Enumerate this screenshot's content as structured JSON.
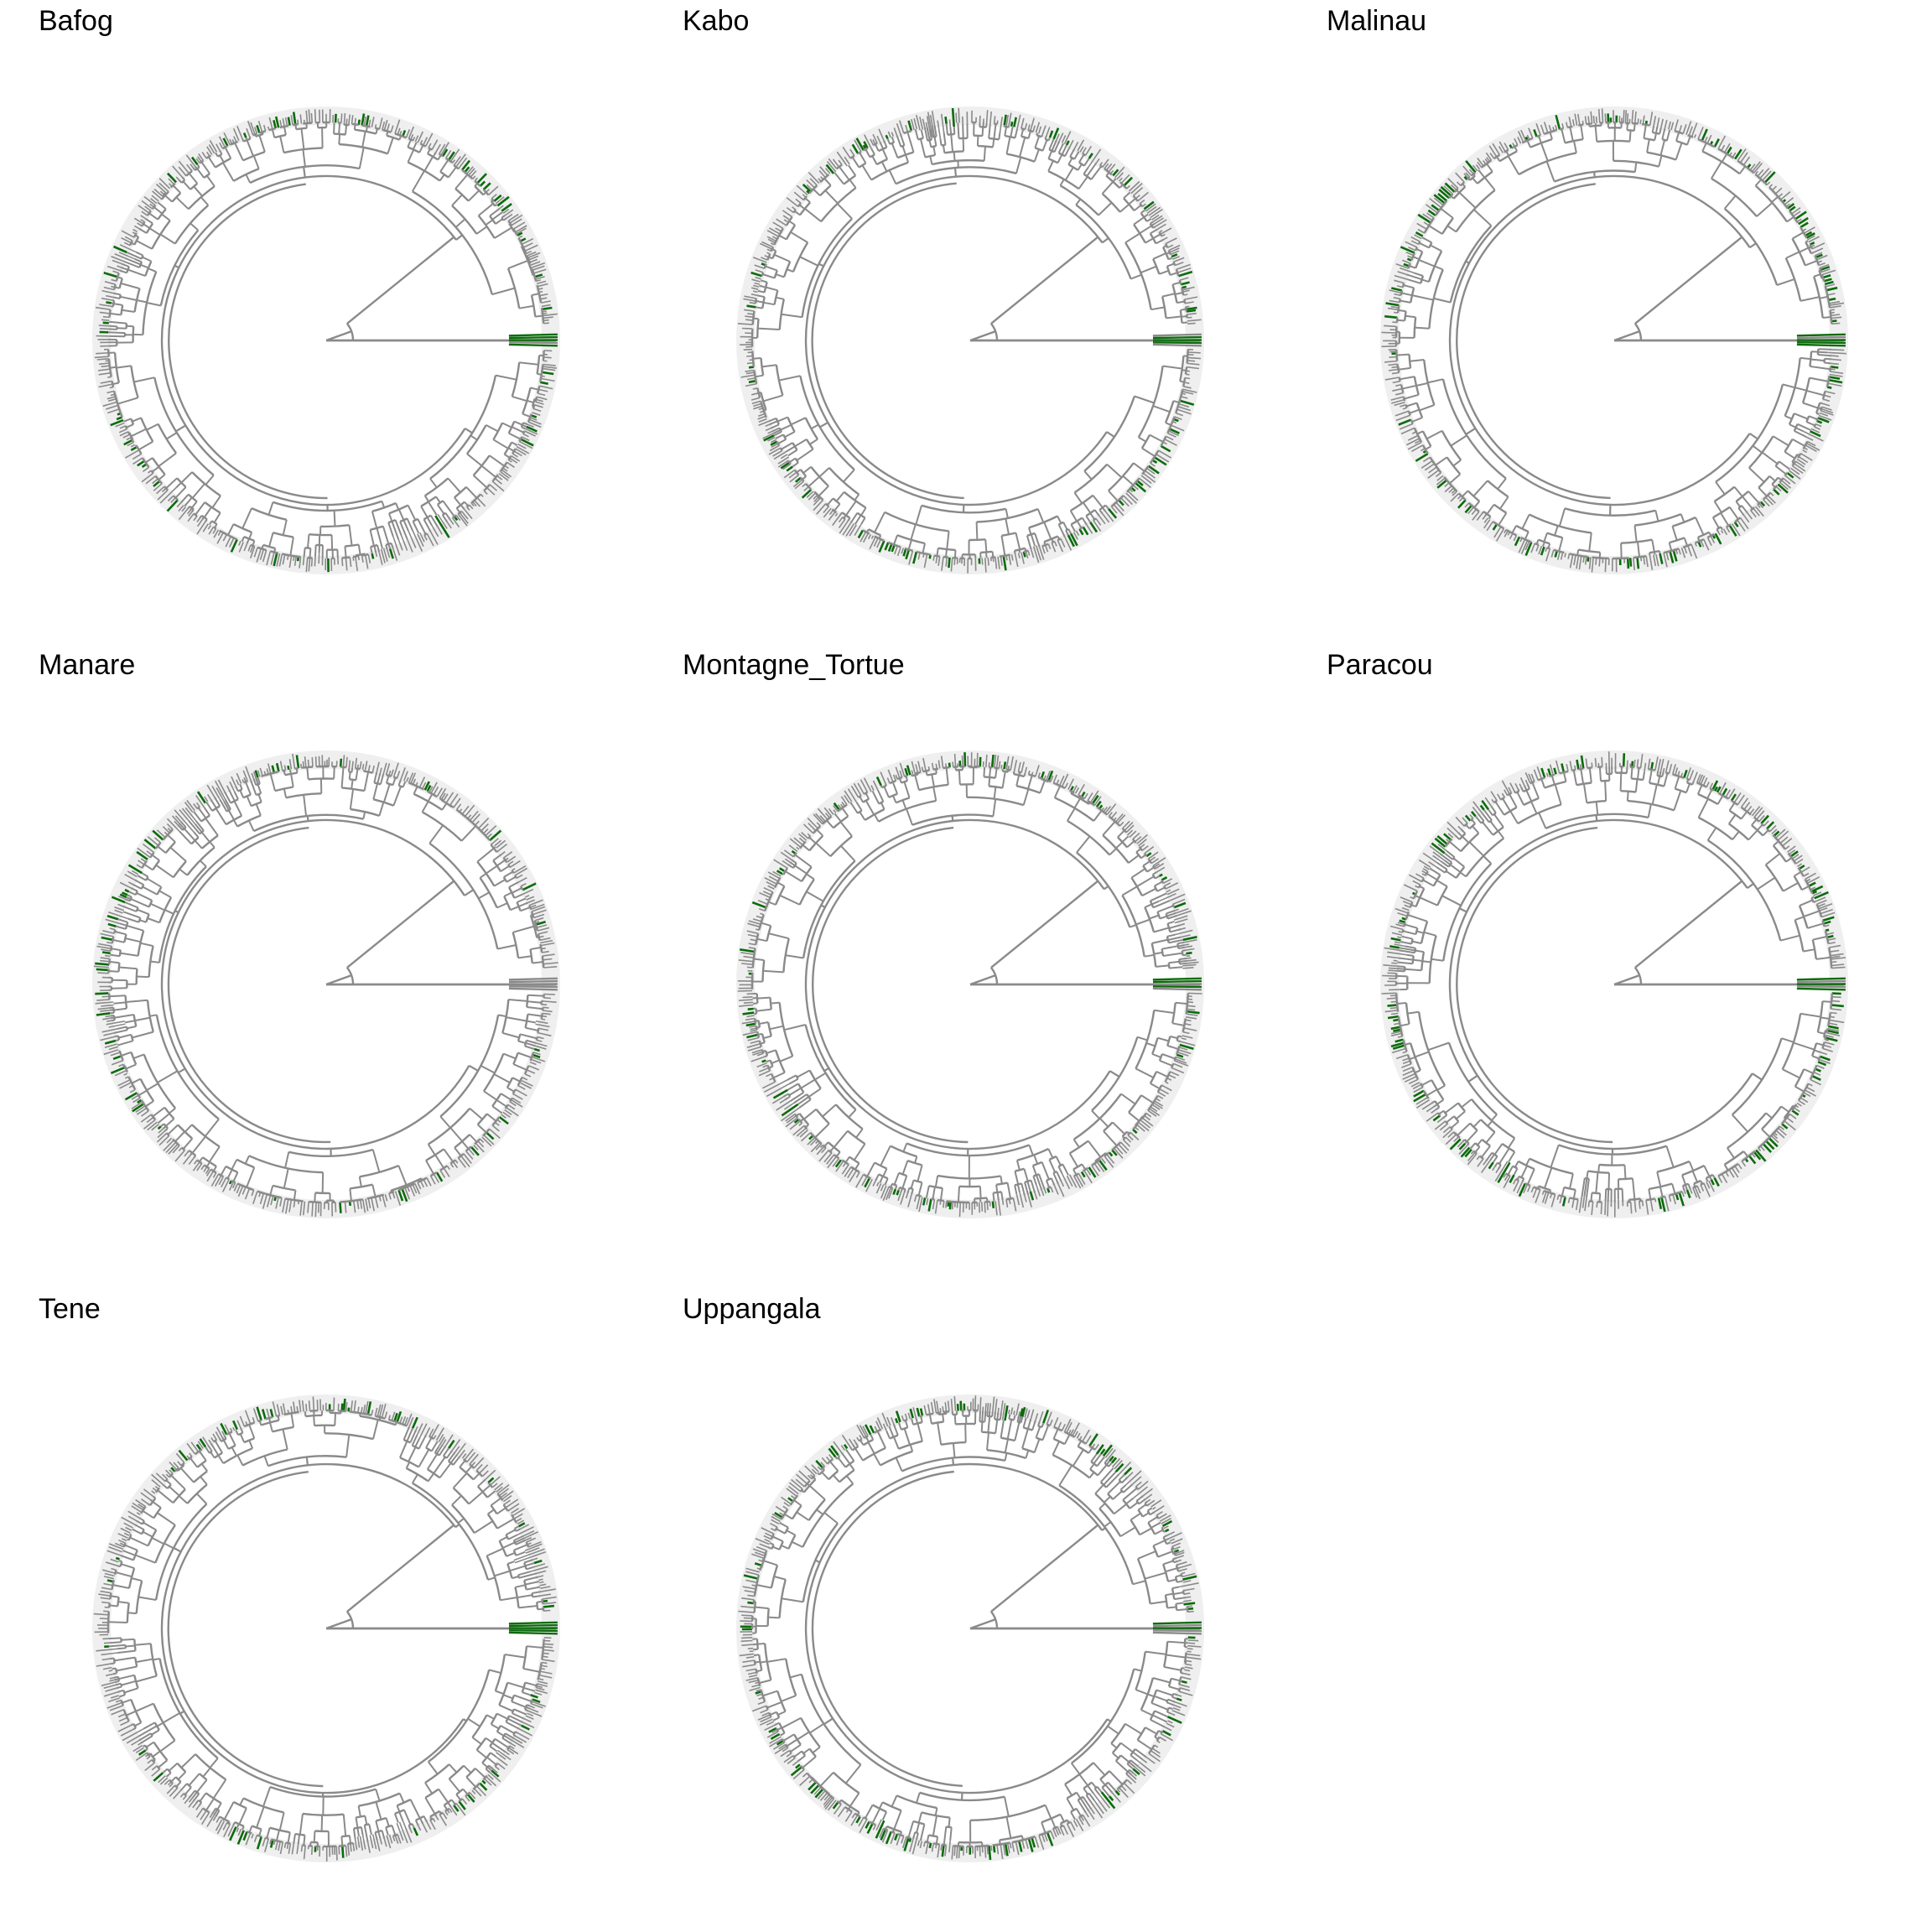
{
  "figure": {
    "colors": {
      "branch": "#8a8a8a",
      "highlight": "#0b6b0b",
      "shade": "#efefef",
      "background": "#ffffff"
    },
    "panels": [
      {
        "title": "Bafog"
      },
      {
        "title": "Kabo"
      },
      {
        "title": "Malinau"
      },
      {
        "title": "Manare"
      },
      {
        "title": "Montagne_Tortue"
      },
      {
        "title": "Paracou"
      },
      {
        "title": "Tene"
      },
      {
        "title": "Uppangala"
      }
    ]
  }
}
